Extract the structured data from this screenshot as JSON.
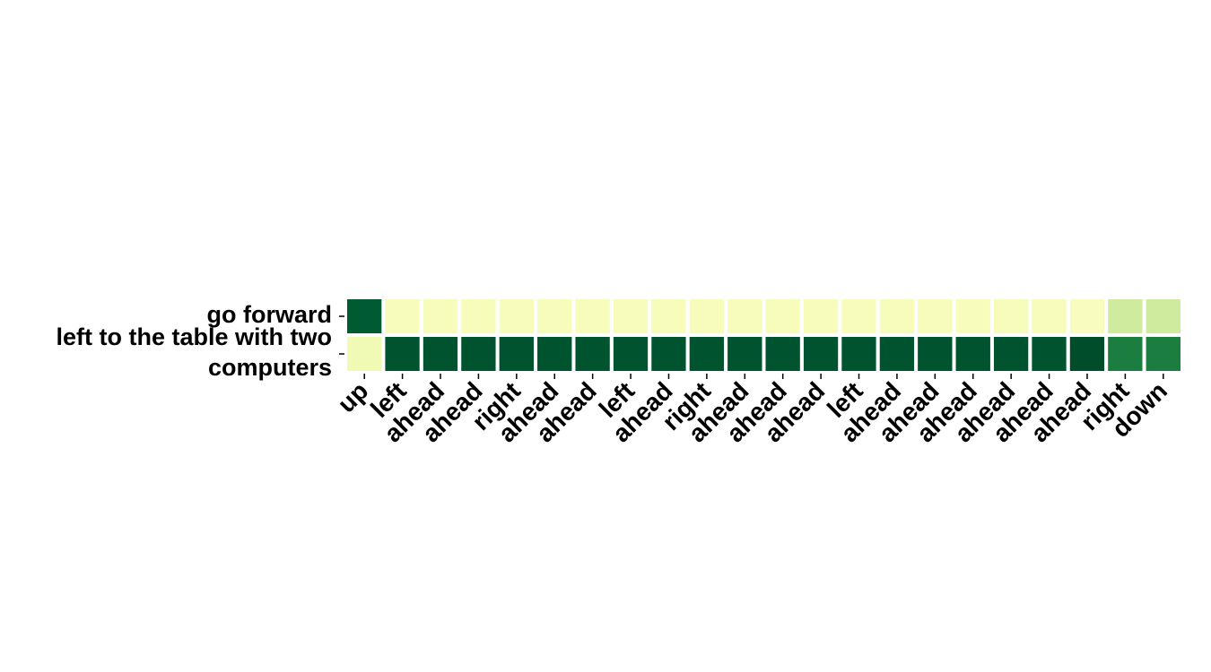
{
  "chart_data": {
    "type": "heatmap",
    "title": "",
    "xlabel": "",
    "ylabel": "",
    "x": [
      "up",
      "left",
      "ahead",
      "ahead",
      "right",
      "ahead",
      "ahead",
      "left",
      "ahead",
      "right",
      "ahead",
      "ahead",
      "ahead",
      "left",
      "ahead",
      "ahead",
      "ahead",
      "ahead",
      "ahead",
      "ahead",
      "right",
      "down"
    ],
    "y": [
      "go forward",
      "left to the table with two computers"
    ],
    "y_lines": [
      [
        "go forward"
      ],
      [
        "left to the table with two",
        "computers"
      ]
    ],
    "values": [
      [
        0.92,
        0.12,
        0.12,
        0.12,
        0.12,
        0.12,
        0.12,
        0.12,
        0.12,
        0.12,
        0.12,
        0.12,
        0.12,
        0.12,
        0.12,
        0.12,
        0.12,
        0.12,
        0.12,
        0.11,
        0.28,
        0.28
      ],
      [
        0.15,
        0.95,
        0.95,
        0.95,
        0.95,
        0.95,
        0.95,
        0.95,
        0.95,
        0.95,
        0.95,
        0.95,
        0.95,
        0.95,
        0.95,
        0.95,
        0.95,
        0.95,
        0.95,
        0.97,
        0.78,
        0.78
      ]
    ],
    "value_range": [
      0,
      1
    ],
    "colormap": "YlGn",
    "colormap_stops": [
      "#ffffe5",
      "#f7fcb9",
      "#d9f0a3",
      "#addd8e",
      "#78c679",
      "#41ab5d",
      "#238443",
      "#006837",
      "#004529"
    ],
    "cell_border_color": "#ffffff",
    "grid": false,
    "legend": "none"
  }
}
